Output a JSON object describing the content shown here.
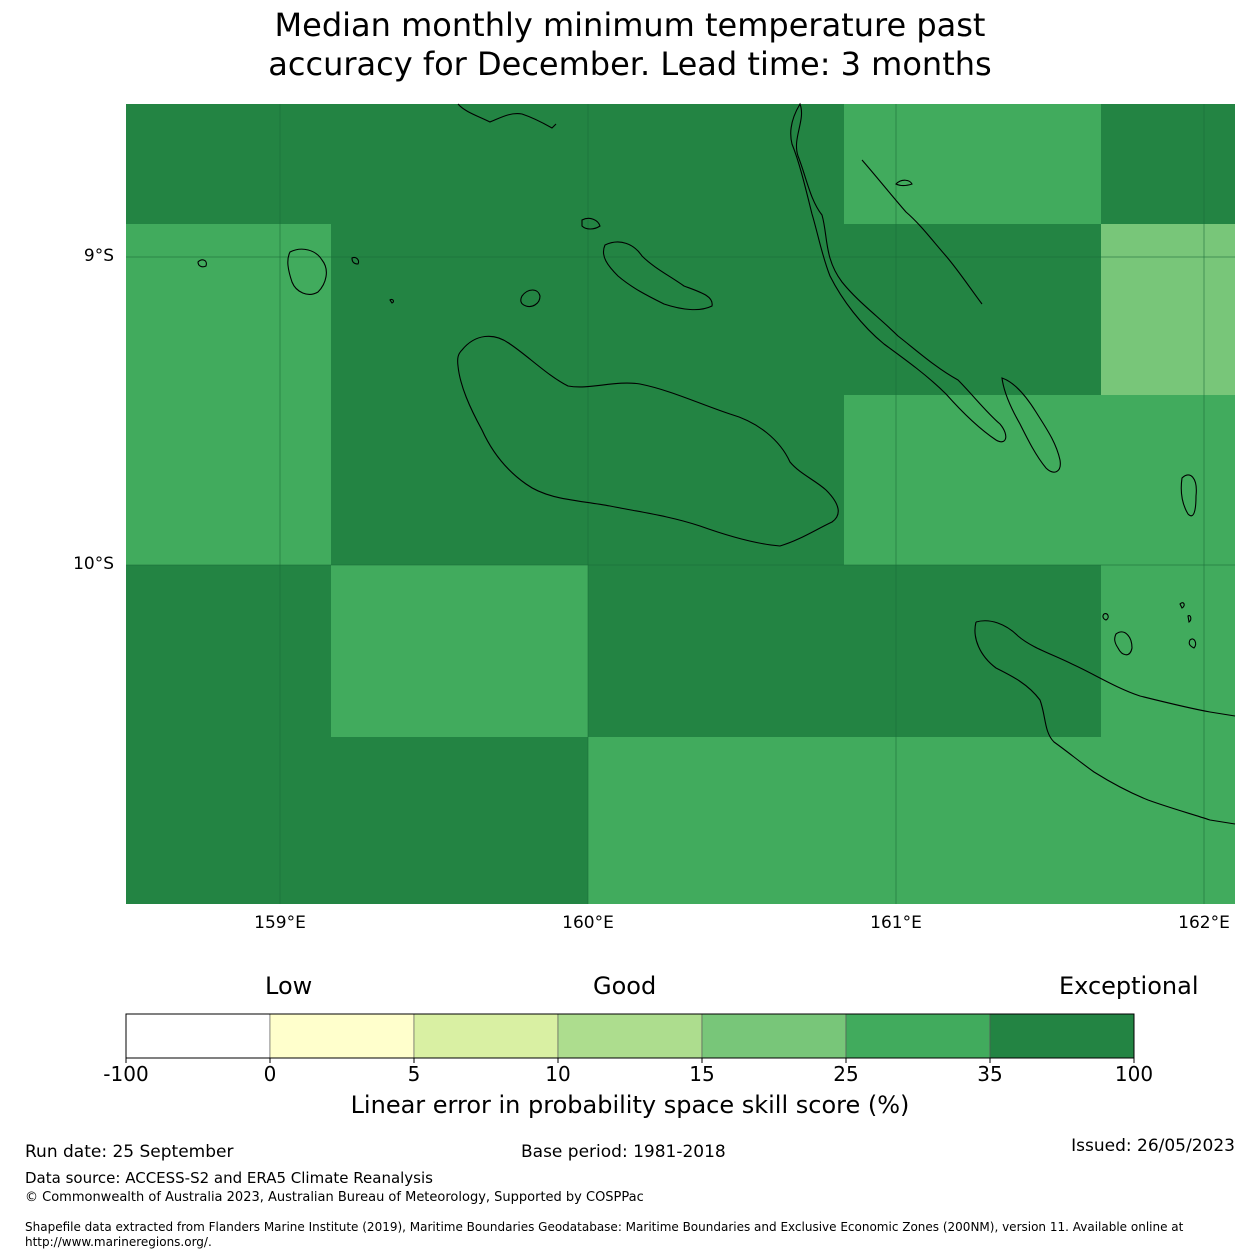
{
  "title": {
    "line1": "Median monthly minimum temperature past",
    "line2": "accuracy for December. Lead time: 3 months"
  },
  "map": {
    "lat_labels": [
      "9°S",
      "10°S"
    ],
    "lon_labels": [
      "159°E",
      "160°E",
      "161°E",
      "162°E"
    ],
    "grid_cells": [
      {
        "cls": "35-100"
      },
      {
        "cls": "35-100"
      },
      {
        "cls": "35-100"
      },
      {
        "cls": "35-100"
      },
      {
        "cls": "25-35"
      },
      {
        "cls": "35-100"
      },
      {
        "cls": "25-35"
      },
      {
        "cls": "35-100"
      },
      {
        "cls": "35-100"
      },
      {
        "cls": "35-100"
      },
      {
        "cls": "35-100"
      },
      {
        "cls": "15-25"
      },
      {
        "cls": "25-35"
      },
      {
        "cls": "35-100"
      },
      {
        "cls": "35-100"
      },
      {
        "cls": "35-100"
      },
      {
        "cls": "25-35"
      },
      {
        "cls": "25-35"
      },
      {
        "cls": "35-100"
      },
      {
        "cls": "25-35"
      },
      {
        "cls": "35-100"
      },
      {
        "cls": "35-100"
      },
      {
        "cls": "35-100"
      },
      {
        "cls": "25-35"
      },
      {
        "cls": "35-100"
      },
      {
        "cls": "35-100"
      },
      {
        "cls": "25-35"
      },
      {
        "cls": "25-35"
      },
      {
        "cls": "25-35"
      },
      {
        "cls": "25-35"
      }
    ]
  },
  "legend": {
    "categories": [
      "Low",
      "Good",
      "Exceptional"
    ],
    "ticks": [
      "-100",
      "0",
      "5",
      "10",
      "15",
      "25",
      "35",
      "100"
    ],
    "colors": [
      "#ffffff",
      "#ffffcc",
      "#d9f0a3",
      "#addd8e",
      "#78c679",
      "#41ab5d",
      "#238443"
    ],
    "title": "Linear error in probability space skill score (%)"
  },
  "footer": {
    "run_date": "Run date: 25 September",
    "base_period": "Base period: 1981-2018",
    "issued": "Issued: 26/05/2023",
    "data_source": "Data source: ACCESS-S2 and ERA5 Climate Reanalysis",
    "copyright": "© Commonwealth of Australia 2023, Australian Bureau of Meteorology, Supported by COSPPac",
    "shapefile_line1": "Shapefile data extracted from Flanders Marine Institute (2019), Maritime Boundaries Geodatabase: Maritime Boundaries and Exclusive Economic Zones (200NM), version 11. Available online at",
    "shapefile_line2": "http://www.marineregions.org/."
  }
}
